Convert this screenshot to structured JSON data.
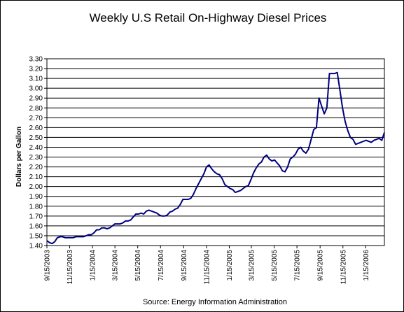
{
  "chart_data": {
    "type": "line",
    "title": "Weekly U.S Retail On-Highway Diesel Prices",
    "xlabel": "",
    "ylabel": "Dollars per Gallon",
    "source": "Source:  Energy Information Administration",
    "ylim": [
      1.4,
      3.3
    ],
    "ytick_step": 0.1,
    "yticks": [
      "1.40",
      "1.50",
      "1.60",
      "1.70",
      "1.80",
      "1.90",
      "2.00",
      "2.10",
      "2.20",
      "2.30",
      "2.40",
      "2.50",
      "2.60",
      "2.70",
      "2.80",
      "2.90",
      "3.00",
      "3.10",
      "3.20",
      "3.30"
    ],
    "xticks": [
      "9/15/2003",
      "11/15/2003",
      "1/15/2004",
      "3/15/2004",
      "5/15/2004",
      "7/15/2004",
      "9/15/2004",
      "11/15/2004",
      "1/15/2005",
      "3/15/2005",
      "5/15/2005",
      "7/15/2005",
      "9/15/2005",
      "11/15/2005",
      "1/15/2006"
    ],
    "grid": true,
    "legend": "none",
    "line_color": "#000080",
    "series": [
      {
        "x": [
          "9/15/2003",
          "9/22/2003",
          "9/29/2003",
          "10/6/2003",
          "10/13/2003",
          "10/20/2003",
          "10/27/2003",
          "11/3/2003",
          "11/10/2003",
          "11/17/2003",
          "11/24/2003",
          "12/1/2003",
          "12/8/2003",
          "12/15/2003",
          "12/22/2003",
          "12/29/2003",
          "1/5/2004",
          "1/12/2004",
          "1/19/2004",
          "1/26/2004",
          "2/2/2004",
          "2/9/2004",
          "2/16/2004",
          "2/23/2004",
          "3/1/2004",
          "3/8/2004",
          "3/15/2004",
          "3/22/2004",
          "3/29/2004",
          "4/5/2004",
          "4/12/2004",
          "4/19/2004",
          "4/26/2004",
          "5/3/2004",
          "5/10/2004",
          "5/17/2004",
          "5/24/2004",
          "5/31/2004",
          "6/7/2004",
          "6/14/2004",
          "6/21/2004",
          "6/28/2004",
          "7/5/2004",
          "7/12/2004",
          "7/19/2004",
          "7/26/2004",
          "8/2/2004",
          "8/9/2004",
          "8/16/2004",
          "8/23/2004",
          "8/30/2004",
          "9/6/2004",
          "9/13/2004",
          "9/20/2004",
          "9/27/2004",
          "10/4/2004",
          "10/11/2004",
          "10/18/2004",
          "10/25/2004",
          "11/1/2004",
          "11/8/2004",
          "11/15/2004",
          "11/22/2004",
          "11/29/2004",
          "12/6/2004",
          "12/13/2004",
          "12/20/2004",
          "12/27/2004",
          "1/3/2005",
          "1/10/2005",
          "1/17/2005",
          "1/24/2005",
          "1/31/2005",
          "2/7/2005",
          "2/14/2005",
          "2/21/2005",
          "2/28/2005",
          "3/7/2005",
          "3/14/2005",
          "3/21/2005",
          "3/28/2005",
          "4/4/2005",
          "4/11/2005",
          "4/18/2005",
          "4/25/2005",
          "5/2/2005",
          "5/9/2005",
          "5/16/2005",
          "5/23/2005",
          "5/30/2005",
          "6/6/2005",
          "6/13/2005",
          "6/20/2005",
          "6/27/2005",
          "7/4/2005",
          "7/11/2005",
          "7/18/2005",
          "7/25/2005",
          "8/1/2005",
          "8/8/2005",
          "8/15/2005",
          "8/22/2005",
          "8/29/2005",
          "9/5/2005",
          "9/12/2005",
          "9/19/2005",
          "9/26/2005",
          "10/3/2005",
          "10/10/2005",
          "10/17/2005",
          "10/24/2005",
          "10/31/2005",
          "11/7/2005",
          "11/14/2005",
          "11/21/2005",
          "11/28/2005",
          "12/5/2005",
          "12/12/2005",
          "12/19/2005",
          "12/26/2005",
          "1/2/2006",
          "1/9/2006",
          "1/16/2006",
          "1/23/2006",
          "1/30/2006",
          "2/6/2006",
          "2/13/2006",
          "2/20/2006",
          "2/27/2006",
          "3/6/2006"
        ],
        "values": [
          1.45,
          1.43,
          1.42,
          1.44,
          1.48,
          1.49,
          1.49,
          1.48,
          1.48,
          1.48,
          1.48,
          1.49,
          1.49,
          1.49,
          1.49,
          1.5,
          1.51,
          1.51,
          1.53,
          1.56,
          1.56,
          1.58,
          1.58,
          1.57,
          1.58,
          1.6,
          1.62,
          1.62,
          1.62,
          1.63,
          1.65,
          1.65,
          1.66,
          1.69,
          1.72,
          1.72,
          1.73,
          1.72,
          1.75,
          1.76,
          1.75,
          1.74,
          1.73,
          1.71,
          1.7,
          1.7,
          1.71,
          1.74,
          1.75,
          1.77,
          1.78,
          1.82,
          1.87,
          1.87,
          1.87,
          1.88,
          1.92,
          1.98,
          2.03,
          2.08,
          2.13,
          2.2,
          2.22,
          2.18,
          2.15,
          2.13,
          2.12,
          2.08,
          2.02,
          2.0,
          1.98,
          1.97,
          1.94,
          1.95,
          1.96,
          1.98,
          2.0,
          2.01,
          2.07,
          2.14,
          2.19,
          2.23,
          2.25,
          2.3,
          2.32,
          2.28,
          2.26,
          2.27,
          2.24,
          2.21,
          2.16,
          2.15,
          2.2,
          2.28,
          2.3,
          2.33,
          2.38,
          2.4,
          2.36,
          2.34,
          2.38,
          2.48,
          2.58,
          2.6,
          2.9,
          2.82,
          2.74,
          2.8,
          3.15,
          3.15,
          3.15,
          3.16,
          2.98,
          2.8,
          2.66,
          2.57,
          2.5,
          2.48,
          2.43,
          2.44,
          2.45,
          2.46,
          2.47,
          2.46,
          2.45,
          2.47,
          2.48,
          2.49,
          2.47,
          2.55
        ]
      }
    ]
  }
}
